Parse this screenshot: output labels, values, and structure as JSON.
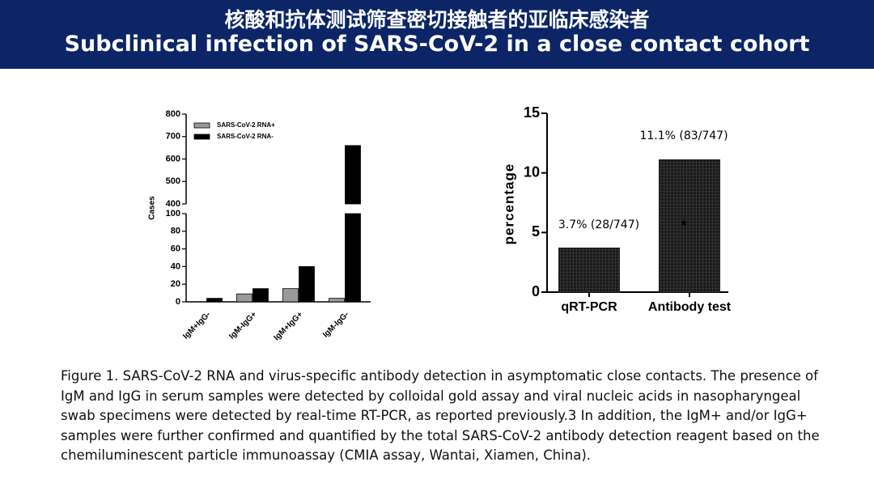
{
  "header": {
    "title_cn": "核酸和抗体测试筛查密切接触者的亚临床感染者",
    "title_en": "Subclinical infection of SARS-CoV-2 in a close contact cohort"
  },
  "chart_data": [
    {
      "type": "bar",
      "ylabel": "Cases",
      "categories": [
        "IgM+IgG-",
        "IgM-IgG+",
        "IgM+IgG+",
        "IgM-IgG-"
      ],
      "series": [
        {
          "name": "SARS-CoV-2 RNA+",
          "color": "#999999",
          "values": [
            0,
            9,
            15,
            4
          ]
        },
        {
          "name": "SARS-CoV-2 RNA-",
          "color": "#000000",
          "values": [
            4,
            15,
            40,
            660
          ]
        }
      ],
      "ylim": [
        0,
        800
      ],
      "y_break": [
        100,
        400
      ],
      "yticks": [
        0,
        20,
        40,
        60,
        80,
        100,
        400,
        500,
        600,
        700,
        800
      ]
    },
    {
      "type": "bar",
      "ylabel": "percentage",
      "categories": [
        "qRT-PCR",
        "Antibody test"
      ],
      "values": [
        3.7,
        11.1
      ],
      "value_labels": [
        "3.7% (28/747)",
        "11.1% (83/747)"
      ],
      "color": "#1a1a1a",
      "annotation": "*",
      "ylim": [
        0,
        15
      ],
      "yticks": [
        0,
        5,
        10,
        15
      ]
    }
  ],
  "caption": "Figure 1. SARS-CoV-2 RNA and virus-specific antibody detection in asymptomatic close contacts. The presence of IgM and IgG in serum samples were detected by colloidal gold assay and viral nucleic acids in nasopharyngeal swab specimens were detected by real-time RT-PCR, as reported previously.3 In addition, the IgM+ and/or IgG+ samples were further confirmed and quantified by the total SARS-CoV-2 antibody detection reagent based on the chemiluminescent particle immunoassay (CMIA assay, Wantai, Xiamen, China)."
}
